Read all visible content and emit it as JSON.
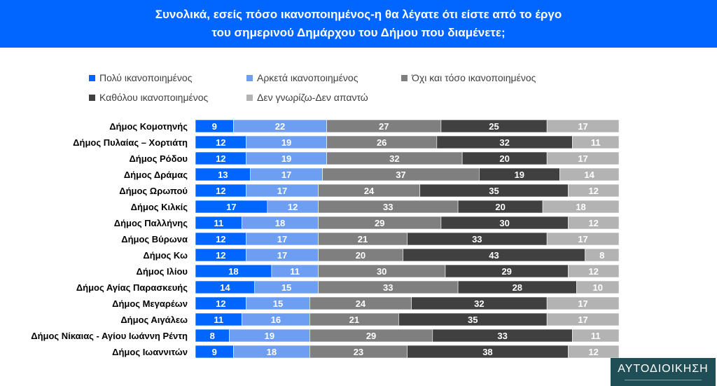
{
  "title_line1": "Συνολικά, εσείς πόσο ικανοποιημένος-η θα λέγατε ότι είστε από το έργο",
  "title_line2": "του σημερινού Δημάρχου του Δήμου που διαμένετε;",
  "logo_text": "ΑΥΤΟΔΙΟΙΚΗΣΗ",
  "colors": [
    "#0066ff",
    "#6d9ef2",
    "#7f7f7f",
    "#404040",
    "#b3b3b3"
  ],
  "chart_data": {
    "type": "bar",
    "orientation": "horizontal",
    "stacked": true,
    "xlim": [
      0,
      100
    ],
    "legend_position": "top",
    "categories": [
      "Δήμος Κομοτηνής",
      "Δήμος Πυλαίας – Χορτιάτη",
      "Δήμος Ρόδου",
      "Δήμος Δράμας",
      "Δήμος Ωρωπού",
      "Δήμος Κιλκίς",
      "Δήμος Παλλήνης",
      "Δήμος Βύρωνα",
      "Δήμος Κω",
      "Δήμος Ιλίου",
      "Δήμος Αγίας Παρασκευής",
      "Δήμος Μεγαρέων",
      "Δήμος Αιγάλεω",
      "Δήμος Νίκαιας - Αγίου Ιωάννη Ρέντη",
      "Δήμος Ιωαννιτών"
    ],
    "series": [
      {
        "name": "Πολύ ικανοποιημένος",
        "values": [
          9,
          12,
          12,
          13,
          12,
          17,
          11,
          12,
          12,
          18,
          14,
          12,
          11,
          8,
          9
        ]
      },
      {
        "name": "Αρκετά ικανοποιημένος",
        "values": [
          22,
          19,
          19,
          17,
          17,
          12,
          18,
          17,
          17,
          11,
          15,
          15,
          16,
          19,
          18
        ]
      },
      {
        "name": "Όχι και τόσο ικανοποιημένος",
        "values": [
          27,
          26,
          32,
          37,
          24,
          33,
          29,
          21,
          20,
          30,
          33,
          24,
          21,
          29,
          23
        ]
      },
      {
        "name": "Καθόλου ικανοποιημένος",
        "values": [
          25,
          32,
          20,
          19,
          35,
          20,
          30,
          33,
          43,
          29,
          28,
          32,
          35,
          33,
          38
        ]
      },
      {
        "name": "Δεν γνωρίζω-Δεν απαντώ",
        "values": [
          17,
          11,
          17,
          14,
          12,
          18,
          12,
          17,
          8,
          12,
          10,
          17,
          17,
          11,
          12
        ]
      }
    ]
  }
}
